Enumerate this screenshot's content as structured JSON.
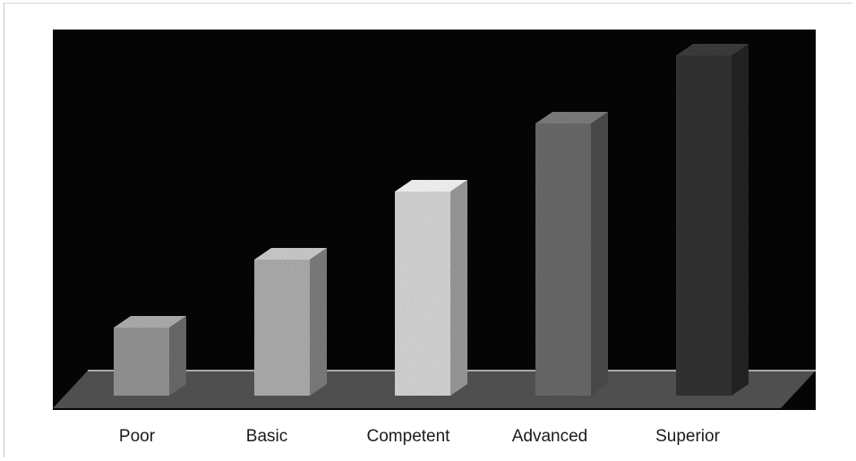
{
  "chart_data": {
    "type": "bar",
    "style": "3d-columns",
    "categories": [
      "Poor",
      "Basic",
      "Competent",
      "Advanced",
      "Superior"
    ],
    "values": [
      1,
      2,
      3,
      4,
      5
    ],
    "ylim": [
      0,
      5
    ],
    "grid": false,
    "legend": "none",
    "title": "",
    "xlabel": "",
    "ylabel": "",
    "colors": {
      "plot_background": "#050505",
      "floor": "#8c8c8c",
      "bars": [
        "#9a9a9a",
        "#b4b4b4",
        "#dedede",
        "#6e6e6e",
        "#353535"
      ]
    }
  }
}
